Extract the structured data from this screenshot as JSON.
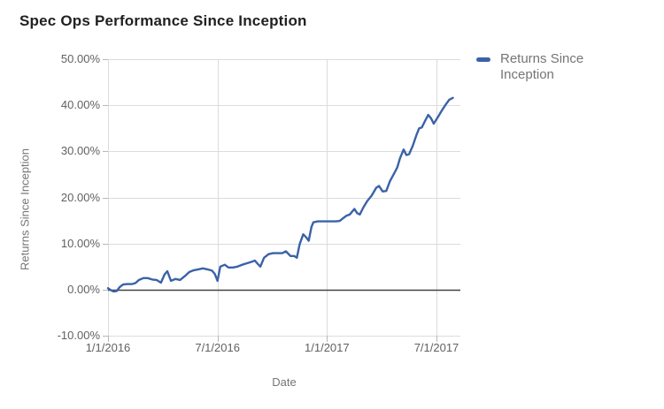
{
  "header": {
    "title": "Spec Ops Performance Since Inception"
  },
  "legend": {
    "label": "Returns Since Inception",
    "swatch_color": "#3a62a7"
  },
  "y_axis": {
    "title": "Returns Since Inception",
    "tick_labels": [
      "50.00%",
      "40.00%",
      "30.00%",
      "20.00%",
      "10.00%",
      "0.00%",
      "-10.00%"
    ],
    "tick_values": [
      50,
      40,
      30,
      20,
      10,
      0,
      -10
    ],
    "range": [
      -10,
      50
    ]
  },
  "x_axis": {
    "title": "Date",
    "ticks": [
      {
        "label": "1/1/2016",
        "m": 0
      },
      {
        "label": "7/1/2016",
        "m": 6
      },
      {
        "label": "1/1/2017",
        "m": 12
      },
      {
        "label": "7/1/2017",
        "m": 18
      }
    ]
  },
  "colors": {
    "line": "#3a62a7",
    "grid": "#dcdcdc",
    "tick_mark": "#b7b7b7",
    "zero_line": "#424242",
    "muted_text": "#757575",
    "title_text": "#212121"
  },
  "chart_data": {
    "type": "line",
    "title": "Spec Ops Performance Since Inception",
    "xlabel": "Date",
    "ylabel": "Returns Since Inception",
    "ylim": [
      -10,
      50
    ],
    "grid": true,
    "legend_position": "right",
    "x_unit": "months_since_2016-01-01",
    "x_tick_labels": [
      "1/1/2016",
      "7/1/2016",
      "1/1/2017",
      "7/1/2017"
    ],
    "y_unit": "percent",
    "series": [
      {
        "name": "Returns Since Inception",
        "points": [
          [
            0.0,
            0.3
          ],
          [
            0.15,
            -0.1
          ],
          [
            0.3,
            -0.4
          ],
          [
            0.48,
            -0.3
          ],
          [
            0.63,
            0.5
          ],
          [
            0.82,
            1.1
          ],
          [
            1.06,
            1.2
          ],
          [
            1.3,
            1.2
          ],
          [
            1.5,
            1.4
          ],
          [
            1.7,
            2.1
          ],
          [
            1.94,
            2.5
          ],
          [
            2.18,
            2.5
          ],
          [
            2.42,
            2.2
          ],
          [
            2.66,
            2.1
          ],
          [
            2.9,
            1.5
          ],
          [
            3.1,
            3.3
          ],
          [
            3.25,
            4.0
          ],
          [
            3.45,
            1.9
          ],
          [
            3.7,
            2.3
          ],
          [
            3.95,
            2.1
          ],
          [
            4.2,
            2.9
          ],
          [
            4.45,
            3.8
          ],
          [
            4.7,
            4.2
          ],
          [
            4.95,
            4.4
          ],
          [
            5.2,
            4.6
          ],
          [
            5.45,
            4.4
          ],
          [
            5.7,
            4.1
          ],
          [
            5.85,
            3.4
          ],
          [
            6.0,
            1.9
          ],
          [
            6.15,
            5.0
          ],
          [
            6.4,
            5.4
          ],
          [
            6.6,
            4.8
          ],
          [
            6.85,
            4.8
          ],
          [
            7.1,
            5.0
          ],
          [
            7.35,
            5.4
          ],
          [
            7.6,
            5.7
          ],
          [
            7.85,
            6.0
          ],
          [
            8.05,
            6.3
          ],
          [
            8.2,
            5.6
          ],
          [
            8.35,
            5.0
          ],
          [
            8.55,
            6.9
          ],
          [
            8.8,
            7.7
          ],
          [
            9.05,
            7.9
          ],
          [
            9.3,
            7.9
          ],
          [
            9.55,
            7.9
          ],
          [
            9.75,
            8.3
          ],
          [
            10.0,
            7.3
          ],
          [
            10.2,
            7.3
          ],
          [
            10.35,
            6.9
          ],
          [
            10.5,
            9.8
          ],
          [
            10.7,
            12.0
          ],
          [
            10.85,
            11.4
          ],
          [
            11.0,
            10.6
          ],
          [
            11.15,
            13.6
          ],
          [
            11.25,
            14.6
          ],
          [
            11.5,
            14.8
          ],
          [
            11.75,
            14.8
          ],
          [
            12.0,
            14.8
          ],
          [
            12.25,
            14.8
          ],
          [
            12.5,
            14.8
          ],
          [
            12.7,
            14.9
          ],
          [
            12.85,
            15.4
          ],
          [
            13.05,
            16.0
          ],
          [
            13.25,
            16.3
          ],
          [
            13.5,
            17.5
          ],
          [
            13.65,
            16.6
          ],
          [
            13.8,
            16.3
          ],
          [
            14.0,
            17.9
          ],
          [
            14.2,
            19.2
          ],
          [
            14.45,
            20.4
          ],
          [
            14.7,
            22.1
          ],
          [
            14.85,
            22.5
          ],
          [
            15.05,
            21.3
          ],
          [
            15.25,
            21.4
          ],
          [
            15.45,
            23.5
          ],
          [
            15.65,
            25.0
          ],
          [
            15.85,
            26.5
          ],
          [
            16.0,
            28.5
          ],
          [
            16.2,
            30.4
          ],
          [
            16.35,
            29.2
          ],
          [
            16.5,
            29.4
          ],
          [
            16.7,
            31.2
          ],
          [
            16.9,
            33.5
          ],
          [
            17.05,
            35.0
          ],
          [
            17.2,
            35.2
          ],
          [
            17.4,
            36.8
          ],
          [
            17.55,
            37.9
          ],
          [
            17.7,
            37.2
          ],
          [
            17.85,
            36.0
          ],
          [
            18.1,
            37.6
          ],
          [
            18.3,
            38.9
          ],
          [
            18.5,
            40.1
          ],
          [
            18.7,
            41.2
          ],
          [
            18.9,
            41.6
          ]
        ]
      }
    ]
  }
}
